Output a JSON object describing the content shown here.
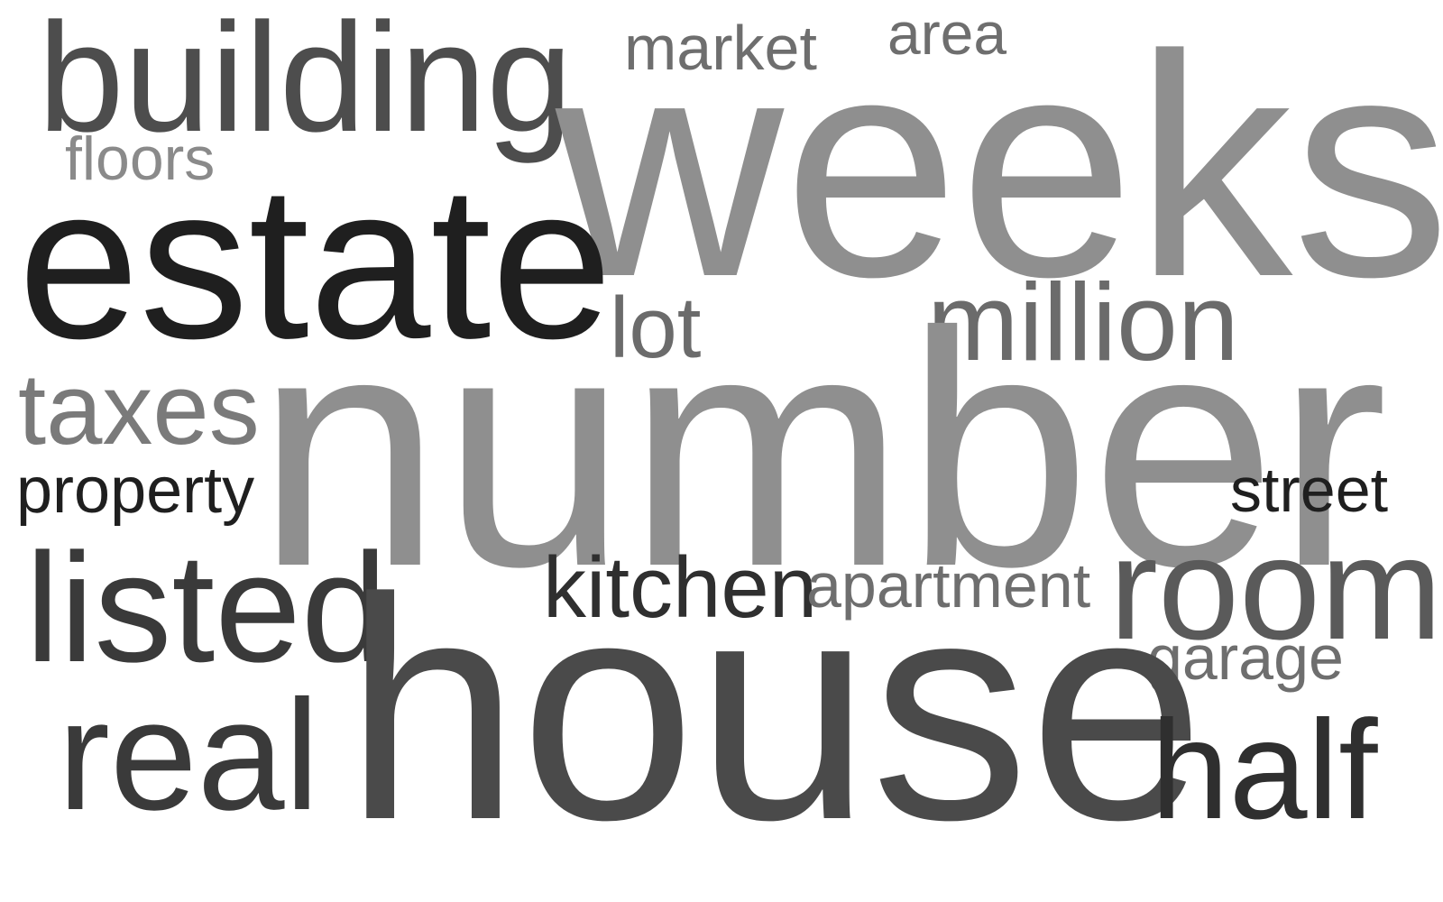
{
  "word_cloud": {
    "words": [
      {
        "id": "building",
        "text": "building",
        "color": "#4d4d4d"
      },
      {
        "id": "market",
        "text": "market",
        "color": "#6e6e6e"
      },
      {
        "id": "area",
        "text": "area",
        "color": "#6e6e6e"
      },
      {
        "id": "floors",
        "text": "floors",
        "color": "#8a8a8a"
      },
      {
        "id": "weeks",
        "text": "weeks",
        "color": "#8f8f8f"
      },
      {
        "id": "estate",
        "text": "estate",
        "color": "#1f1f1f"
      },
      {
        "id": "million",
        "text": "million",
        "color": "#6b6b6b"
      },
      {
        "id": "lot",
        "text": "lot",
        "color": "#6b6b6b"
      },
      {
        "id": "taxes",
        "text": "taxes",
        "color": "#7a7a7a"
      },
      {
        "id": "number",
        "text": "number",
        "color": "#8f8f8f"
      },
      {
        "id": "property",
        "text": "property",
        "color": "#1f1f1f"
      },
      {
        "id": "street",
        "text": "street",
        "color": "#1f1f1f"
      },
      {
        "id": "kitchen",
        "text": "kitchen",
        "color": "#2f2f2f"
      },
      {
        "id": "apartment",
        "text": "apartment",
        "color": "#6e6e6e"
      },
      {
        "id": "room",
        "text": "room",
        "color": "#5a5a5a"
      },
      {
        "id": "listed",
        "text": "listed",
        "color": "#3a3a3a"
      },
      {
        "id": "garage",
        "text": "garage",
        "color": "#6e6e6e"
      },
      {
        "id": "house",
        "text": "house",
        "color": "#4a4a4a"
      },
      {
        "id": "real",
        "text": "real",
        "color": "#3a3a3a"
      },
      {
        "id": "half",
        "text": "half",
        "color": "#2f2f2f"
      }
    ]
  }
}
